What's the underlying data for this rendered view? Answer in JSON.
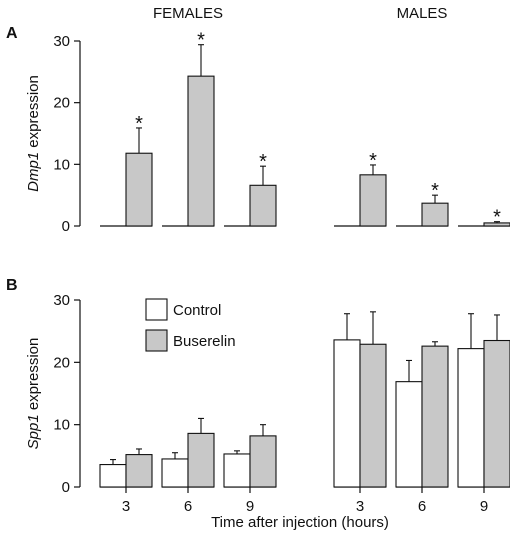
{
  "chart_data": [
    {
      "panel": "A",
      "type": "bar",
      "ylabel_italic": "Dmp1",
      "ylabel_rest": " expression",
      "ylim": [
        0,
        30
      ],
      "yticks": [
        0,
        10,
        20,
        30
      ],
      "groups": [
        {
          "label": "FEMALES",
          "categories": [
            "3",
            "6",
            "9"
          ],
          "series": [
            {
              "name": "Control",
              "values": [
                0,
                0,
                0
              ],
              "errors": [
                0,
                0,
                0
              ]
            },
            {
              "name": "Buserelin",
              "values": [
                11.8,
                24.3,
                6.6
              ],
              "errors": [
                4.1,
                5.1,
                3.1
              ]
            }
          ],
          "annotations": [
            "*",
            "*",
            "*"
          ]
        },
        {
          "label": "MALES",
          "categories": [
            "3",
            "6",
            "9"
          ],
          "series": [
            {
              "name": "Control",
              "values": [
                0,
                0,
                0
              ],
              "errors": [
                0,
                0,
                0
              ]
            },
            {
              "name": "Buserelin",
              "values": [
                8.3,
                3.7,
                0.5
              ],
              "errors": [
                1.6,
                1.3,
                0.2
              ]
            }
          ],
          "annotations": [
            "*",
            "*",
            "*"
          ]
        }
      ]
    },
    {
      "panel": "B",
      "type": "bar",
      "ylabel_italic": "Spp1",
      "ylabel_rest": " expression",
      "ylim": [
        0,
        30
      ],
      "yticks": [
        0,
        10,
        20,
        30
      ],
      "xlabel": "Time after injection (hours)",
      "legend": {
        "placement": "top-left",
        "entries": [
          "Control",
          "Buserelin"
        ]
      },
      "groups": [
        {
          "label": "FEMALES",
          "categories": [
            "3",
            "6",
            "9"
          ],
          "series": [
            {
              "name": "Control",
              "values": [
                3.6,
                4.5,
                5.3
              ],
              "errors": [
                0.8,
                1.0,
                0.5
              ]
            },
            {
              "name": "Buserelin",
              "values": [
                5.2,
                8.6,
                8.2
              ],
              "errors": [
                0.9,
                2.4,
                1.8
              ]
            }
          ]
        },
        {
          "label": "MALES",
          "categories": [
            "3",
            "6",
            "9"
          ],
          "series": [
            {
              "name": "Control",
              "values": [
                23.6,
                16.9,
                22.2
              ],
              "errors": [
                4.2,
                3.4,
                5.6
              ]
            },
            {
              "name": "Buserelin",
              "values": [
                22.9,
                22.6,
                23.5
              ],
              "errors": [
                5.2,
                0.7,
                4.1
              ]
            }
          ]
        }
      ]
    }
  ],
  "colors": {
    "control": "#ffffff",
    "buserelin": "#c8c8c8",
    "stroke": "#111111"
  }
}
